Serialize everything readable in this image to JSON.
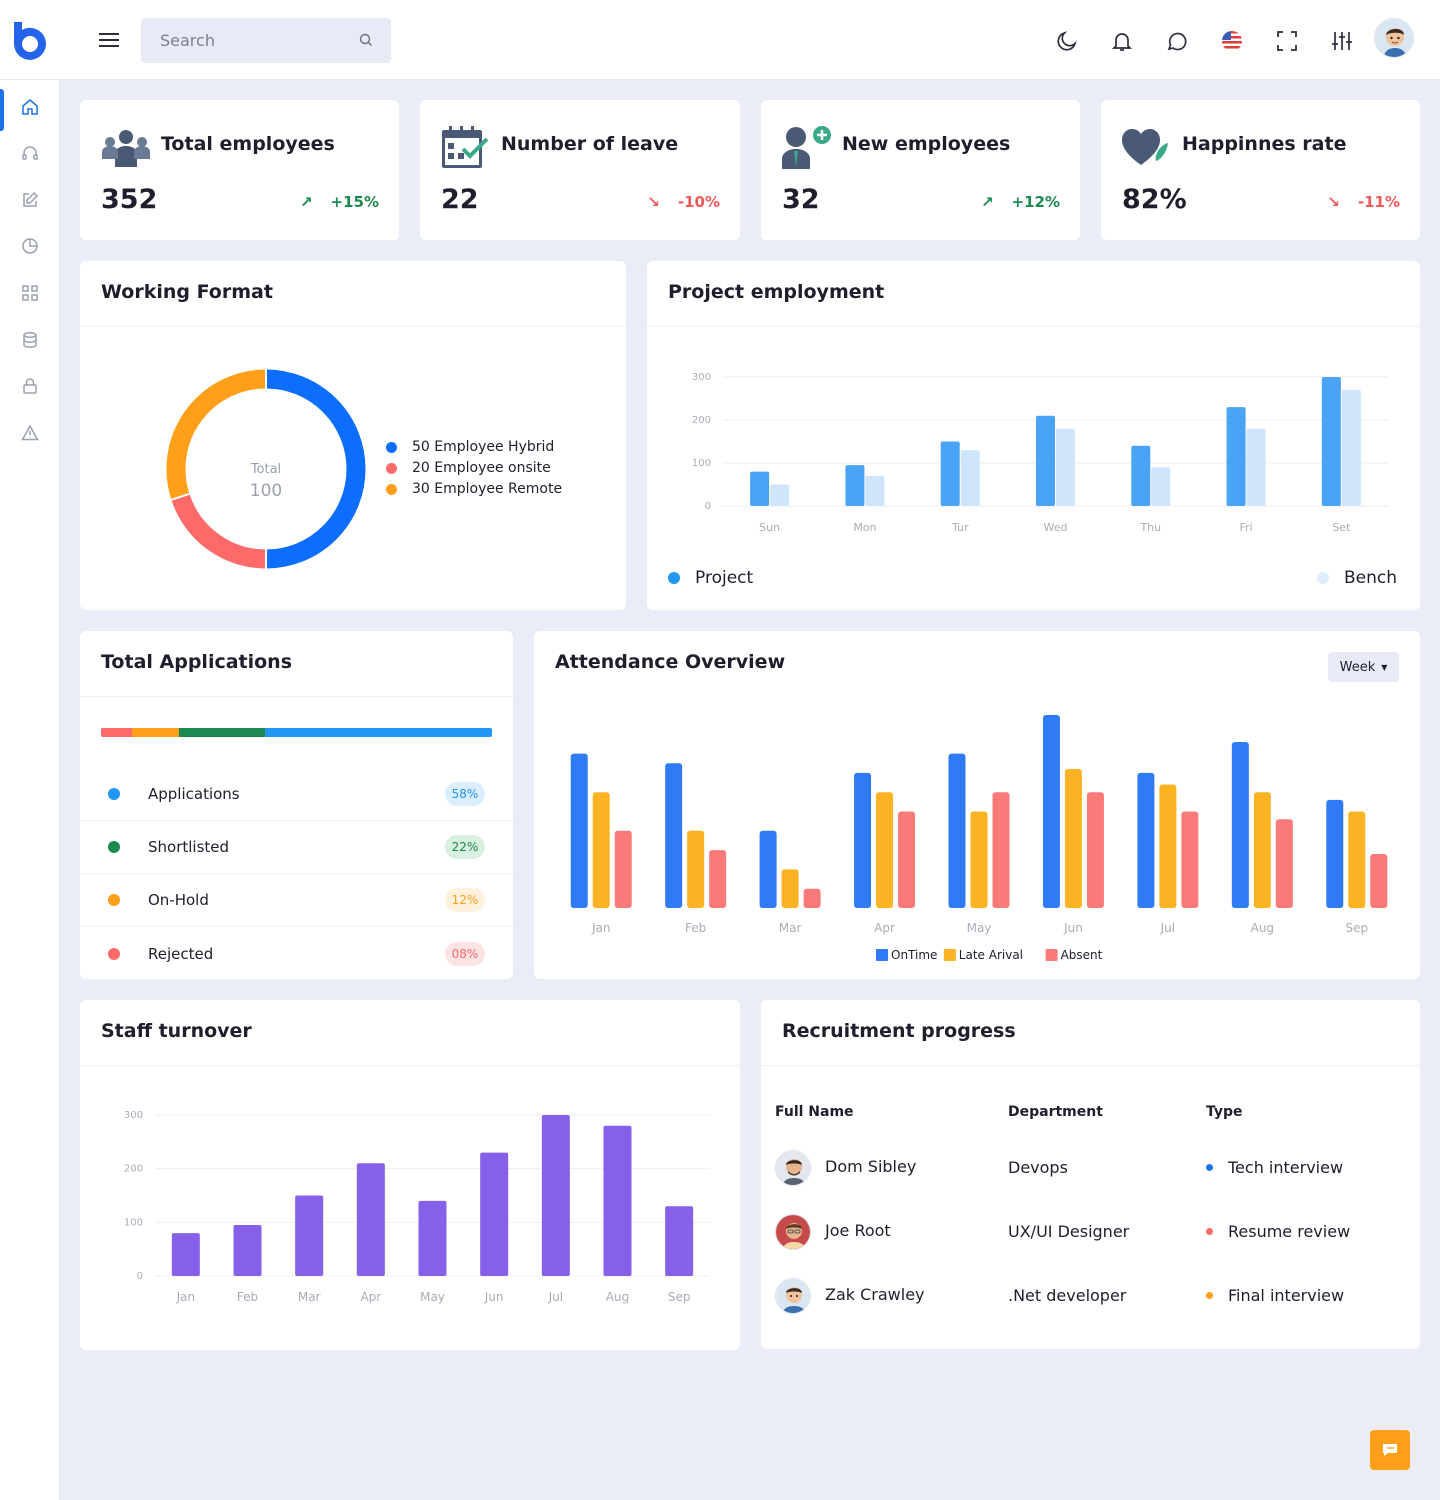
{
  "search": {
    "placeholder": "Search"
  },
  "stats": [
    {
      "label": "Total employees",
      "value": "352",
      "trend": "+15%",
      "direction": "up"
    },
    {
      "label": "Number of leave",
      "value": "22",
      "trend": "-10%",
      "direction": "down"
    },
    {
      "label": "New employees",
      "value": "32",
      "trend": "+12%",
      "direction": "up"
    },
    {
      "label": "Happinnes rate",
      "value": "82%",
      "trend": "-11%",
      "direction": "down"
    }
  ],
  "working_format": {
    "title": "Working Format",
    "center_label": "Total",
    "center_value": "100",
    "legend": [
      "50 Employee Hybrid",
      "20 Employee onsite",
      "30 Employee Remote"
    ]
  },
  "project_employment": {
    "title": "Project employment",
    "legend_a": "Project",
    "legend_b": "Bench"
  },
  "total_applications": {
    "title": "Total Applications",
    "segments": [
      {
        "share": 8,
        "color": "#fc6a6a"
      },
      {
        "share": 12,
        "color": "#ff9f1a"
      },
      {
        "share": 22,
        "color": "#1c8a50"
      },
      {
        "share": 58,
        "color": "#2196f3"
      }
    ],
    "rows": [
      {
        "label": "Applications",
        "badge": "58%",
        "color": "#2196f3",
        "badge_bg": "#dceefe",
        "badge_fg": "#2196f3"
      },
      {
        "label": "Shortlisted",
        "badge": "22%",
        "color": "#1c8a50",
        "badge_bg": "#d8efe2",
        "badge_fg": "#1c8a50"
      },
      {
        "label": "On-Hold",
        "badge": "12%",
        "color": "#ff9f1a",
        "badge_bg": "#fff1dc",
        "badge_fg": "#ff9f1a"
      },
      {
        "label": "Rejected",
        "badge": "08%",
        "color": "#fc6a6a",
        "badge_bg": "#fde4e4",
        "badge_fg": "#fc6a6a"
      }
    ]
  },
  "attendance": {
    "title": "Attendance Overview",
    "period": "Week"
  },
  "staff_turnover": {
    "title": "Staff turnover"
  },
  "recruitment": {
    "title": "Recruitment progress",
    "headers": {
      "name": "Full Name",
      "dept": "Department",
      "type": "Type"
    },
    "rows": [
      {
        "name": "Dom Sibley",
        "dept": "Devops",
        "type": "Tech interview",
        "color": "#1a73e8"
      },
      {
        "name": "Joe Root",
        "dept": "UX/UI Designer",
        "type": "Resume review",
        "color": "#fc6a6a"
      },
      {
        "name": "Zak Crawley",
        "dept": ".Net developer",
        "type": "Final interview",
        "color": "#ff9f1a"
      }
    ]
  },
  "chart_data": [
    {
      "type": "pie",
      "categories": [
        "Employee Hybrid",
        "Employee onsite",
        "Employee Remote"
      ],
      "values": [
        50,
        20,
        30
      ],
      "colors": [
        "#0d6efd",
        "#fc6a6a",
        "#ff9f1a"
      ]
    },
    {
      "type": "bar",
      "categories": [
        "Sun",
        "Mon",
        "Tur",
        "Wed",
        "Thu",
        "Fri",
        "Set"
      ],
      "series": [
        {
          "name": "Project",
          "values": [
            80,
            95,
            150,
            210,
            140,
            230,
            300
          ],
          "color": "#4aa3f5"
        },
        {
          "name": "Bench",
          "values": [
            50,
            70,
            130,
            180,
            90,
            180,
            270
          ],
          "color": "#cfe5fc"
        }
      ],
      "yticks": [
        0,
        100,
        200,
        300
      ],
      "ylim": [
        0,
        300
      ]
    },
    {
      "type": "bar",
      "categories": [
        "Jan",
        "Feb",
        "Mar",
        "Apr",
        "May",
        "Jun",
        "Jul",
        "Aug",
        "Sep"
      ],
      "series": [
        {
          "name": "OnTime",
          "values": [
            80,
            75,
            40,
            70,
            80,
            100,
            70,
            86,
            56
          ],
          "color": "#2f7bf5"
        },
        {
          "name": "Late Arival",
          "values": [
            60,
            40,
            20,
            60,
            50,
            72,
            64,
            60,
            50
          ],
          "color": "#fbb324"
        },
        {
          "name": "Absent",
          "values": [
            40,
            30,
            10,
            50,
            60,
            60,
            50,
            46,
            28
          ],
          "color": "#fa7a7a"
        }
      ],
      "ylim": [
        0,
        100
      ]
    },
    {
      "type": "bar",
      "categories": [
        "Jan",
        "Feb",
        "Mar",
        "Apr",
        "May",
        "Jun",
        "Jul",
        "Aug",
        "Sep"
      ],
      "values": [
        80,
        95,
        150,
        210,
        140,
        230,
        300,
        280,
        130
      ],
      "color": "#8660e9",
      "yticks": [
        0,
        100,
        200,
        300
      ],
      "ylim": [
        0,
        300
      ]
    }
  ]
}
